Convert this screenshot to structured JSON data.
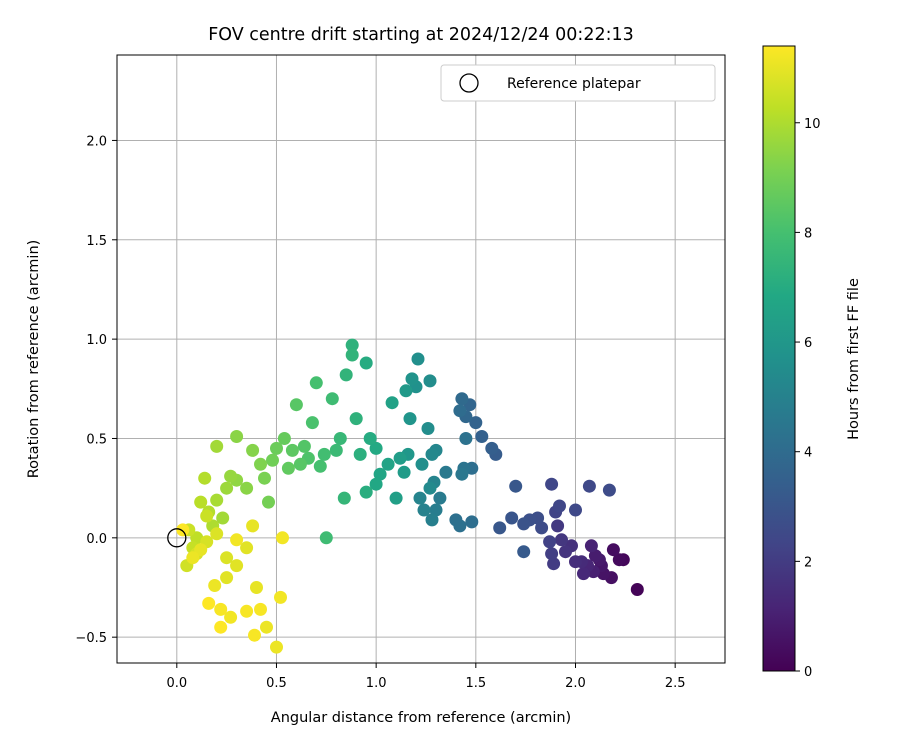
{
  "chart_data": {
    "type": "scatter",
    "title": "FOV centre drift starting at 2024/12/24 00:22:13",
    "xlabel": "Angular distance from reference (arcmin)",
    "ylabel": "Rotation from reference (arcmin)",
    "xlim": [
      -0.3,
      2.75
    ],
    "ylim": [
      -0.63,
      2.43
    ],
    "xticks": [
      0.0,
      0.5,
      1.0,
      1.5,
      2.0,
      2.5
    ],
    "xtick_labels": [
      "0.0",
      "0.5",
      "1.0",
      "1.5",
      "2.0",
      "2.5"
    ],
    "yticks": [
      -0.5,
      0.0,
      0.5,
      1.0,
      1.5,
      2.0
    ],
    "ytick_labels": [
      "−0.5",
      "0.0",
      "0.5",
      "1.0",
      "1.5",
      "2.0"
    ],
    "grid": true,
    "legend": {
      "position": "top-right",
      "entries": [
        "Reference platepar"
      ]
    },
    "colorbar": {
      "label": "Hours from first FF file",
      "colormap": "viridis",
      "range": [
        0,
        11.4
      ],
      "ticks": [
        0,
        2,
        4,
        6,
        8,
        10
      ],
      "tick_labels": [
        "0",
        "2",
        "4",
        "6",
        "8",
        "10"
      ]
    },
    "reference_point": {
      "x": 0.0,
      "y": 0.0
    },
    "point_fields": [
      "x",
      "y",
      "hours"
    ],
    "points": [
      [
        2.31,
        -0.26,
        0.1
      ],
      [
        2.24,
        -0.11,
        0.2
      ],
      [
        2.22,
        -0.11,
        0.3
      ],
      [
        2.19,
        -0.06,
        0.4
      ],
      [
        2.18,
        -0.2,
        0.5
      ],
      [
        2.14,
        -0.18,
        0.6
      ],
      [
        2.13,
        -0.14,
        0.7
      ],
      [
        2.12,
        -0.11,
        0.8
      ],
      [
        2.1,
        -0.09,
        0.9
      ],
      [
        2.09,
        -0.17,
        1.0
      ],
      [
        2.08,
        -0.04,
        1.1
      ],
      [
        2.06,
        -0.14,
        1.2
      ],
      [
        2.04,
        -0.18,
        1.3
      ],
      [
        2.03,
        -0.12,
        1.4
      ],
      [
        2.0,
        -0.12,
        1.5
      ],
      [
        1.98,
        -0.04,
        1.6
      ],
      [
        1.95,
        -0.07,
        1.7
      ],
      [
        1.93,
        -0.01,
        1.8
      ],
      [
        1.91,
        0.06,
        1.9
      ],
      [
        1.89,
        -0.13,
        2.0
      ],
      [
        1.88,
        -0.08,
        2.1
      ],
      [
        1.87,
        -0.02,
        2.2
      ],
      [
        1.9,
        0.13,
        2.3
      ],
      [
        1.92,
        0.16,
        2.4
      ],
      [
        1.88,
        0.27,
        2.4
      ],
      [
        2.0,
        0.14,
        2.5
      ],
      [
        2.07,
        0.26,
        2.5
      ],
      [
        2.17,
        0.24,
        2.6
      ],
      [
        1.83,
        0.05,
        2.6
      ],
      [
        1.81,
        0.1,
        2.7
      ],
      [
        1.77,
        0.09,
        2.8
      ],
      [
        1.74,
        0.07,
        2.9
      ],
      [
        1.68,
        0.1,
        3.0
      ],
      [
        1.62,
        0.05,
        3.1
      ],
      [
        1.7,
        0.26,
        3.1
      ],
      [
        1.74,
        -0.07,
        3.2
      ],
      [
        1.6,
        0.42,
        3.3
      ],
      [
        1.58,
        0.45,
        3.4
      ],
      [
        1.53,
        0.51,
        3.5
      ],
      [
        1.5,
        0.58,
        3.6
      ],
      [
        1.47,
        0.67,
        3.7
      ],
      [
        1.45,
        0.61,
        3.8
      ],
      [
        1.43,
        0.7,
        3.9
      ],
      [
        1.42,
        0.64,
        4.0
      ],
      [
        1.48,
        0.35,
        4.1
      ],
      [
        1.48,
        0.08,
        4.1
      ],
      [
        1.42,
        0.06,
        4.2
      ],
      [
        1.4,
        0.09,
        4.2
      ],
      [
        1.45,
        0.5,
        4.3
      ],
      [
        1.44,
        0.35,
        4.4
      ],
      [
        1.43,
        0.32,
        4.5
      ],
      [
        1.35,
        0.33,
        4.6
      ],
      [
        1.32,
        0.2,
        4.7
      ],
      [
        1.3,
        0.14,
        4.8
      ],
      [
        1.28,
        0.09,
        4.9
      ],
      [
        1.24,
        0.14,
        5.0
      ],
      [
        1.22,
        0.2,
        5.1
      ],
      [
        1.29,
        0.28,
        5.1
      ],
      [
        1.3,
        0.44,
        5.2
      ],
      [
        1.28,
        0.42,
        5.3
      ],
      [
        1.27,
        0.25,
        5.4
      ],
      [
        1.26,
        0.55,
        5.5
      ],
      [
        1.27,
        0.79,
        5.5
      ],
      [
        1.23,
        0.37,
        5.6
      ],
      [
        1.21,
        0.9,
        5.6
      ],
      [
        1.2,
        0.76,
        5.7
      ],
      [
        1.18,
        0.8,
        5.8
      ],
      [
        1.17,
        0.6,
        5.9
      ],
      [
        1.16,
        0.42,
        6.0
      ],
      [
        1.15,
        0.74,
        6.1
      ],
      [
        1.14,
        0.33,
        6.2
      ],
      [
        1.12,
        0.4,
        6.3
      ],
      [
        1.1,
        0.2,
        6.4
      ],
      [
        1.08,
        0.68,
        6.5
      ],
      [
        1.06,
        0.37,
        6.6
      ],
      [
        1.02,
        0.32,
        6.7
      ],
      [
        1.0,
        0.27,
        6.8
      ],
      [
        1.0,
        0.45,
        6.9
      ],
      [
        0.97,
        0.5,
        7.0
      ],
      [
        0.95,
        0.88,
        7.0
      ],
      [
        0.95,
        0.23,
        7.1
      ],
      [
        0.92,
        0.42,
        7.2
      ],
      [
        0.9,
        0.6,
        7.3
      ],
      [
        0.88,
        0.97,
        7.3
      ],
      [
        0.88,
        0.92,
        7.4
      ],
      [
        0.85,
        0.82,
        7.4
      ],
      [
        0.84,
        0.2,
        7.5
      ],
      [
        0.82,
        0.5,
        7.6
      ],
      [
        0.8,
        0.44,
        7.7
      ],
      [
        0.78,
        0.7,
        7.8
      ],
      [
        0.75,
        0.0,
        7.8
      ],
      [
        0.74,
        0.42,
        7.9
      ],
      [
        0.72,
        0.36,
        8.0
      ],
      [
        0.7,
        0.78,
        8.0
      ],
      [
        0.68,
        0.58,
        8.1
      ],
      [
        0.66,
        0.4,
        8.2
      ],
      [
        0.64,
        0.46,
        8.3
      ],
      [
        0.62,
        0.37,
        8.4
      ],
      [
        0.6,
        0.67,
        8.4
      ],
      [
        0.58,
        0.44,
        8.5
      ],
      [
        0.56,
        0.35,
        8.6
      ],
      [
        0.54,
        0.5,
        8.7
      ],
      [
        0.5,
        0.45,
        8.8
      ],
      [
        0.48,
        0.39,
        8.9
      ],
      [
        0.46,
        0.18,
        9.0
      ],
      [
        0.44,
        0.3,
        9.1
      ],
      [
        0.42,
        0.37,
        9.2
      ],
      [
        0.38,
        0.44,
        9.3
      ],
      [
        0.35,
        0.25,
        9.4
      ],
      [
        0.3,
        0.51,
        9.4
      ],
      [
        0.3,
        0.29,
        9.5
      ],
      [
        0.27,
        0.31,
        9.6
      ],
      [
        0.25,
        0.25,
        9.7
      ],
      [
        0.23,
        0.1,
        9.8
      ],
      [
        0.2,
        0.46,
        9.8
      ],
      [
        0.2,
        0.19,
        9.9
      ],
      [
        0.18,
        0.06,
        10.0
      ],
      [
        0.16,
        0.13,
        10.1
      ],
      [
        0.14,
        0.3,
        10.1
      ],
      [
        0.12,
        0.18,
        10.2
      ],
      [
        0.1,
        0.0,
        10.3
      ],
      [
        0.08,
        -0.05,
        10.4
      ],
      [
        0.06,
        0.04,
        10.5
      ],
      [
        0.05,
        -0.14,
        10.6
      ],
      [
        0.1,
        -0.08,
        10.7
      ],
      [
        0.15,
        -0.02,
        10.7
      ],
      [
        0.2,
        0.02,
        10.8
      ],
      [
        0.25,
        -0.1,
        10.8
      ],
      [
        0.3,
        -0.14,
        10.9
      ],
      [
        0.35,
        -0.05,
        10.9
      ],
      [
        0.38,
        0.06,
        11.0
      ],
      [
        0.4,
        -0.25,
        11.0
      ],
      [
        0.45,
        -0.45,
        11.1
      ],
      [
        0.5,
        -0.55,
        11.1
      ],
      [
        0.52,
        -0.3,
        11.2
      ],
      [
        0.53,
        0.0,
        11.2
      ],
      [
        0.42,
        -0.36,
        11.3
      ],
      [
        0.39,
        -0.49,
        11.3
      ],
      [
        0.35,
        -0.37,
        11.3
      ],
      [
        0.22,
        -0.45,
        11.4
      ],
      [
        0.16,
        -0.33,
        11.4
      ],
      [
        0.03,
        0.04,
        11.4
      ],
      [
        0.22,
        -0.36,
        11.3
      ],
      [
        0.27,
        -0.4,
        11.2
      ],
      [
        0.3,
        -0.01,
        11.2
      ],
      [
        0.19,
        -0.24,
        11.1
      ],
      [
        0.12,
        -0.06,
        11.0
      ],
      [
        0.25,
        -0.2,
        10.9
      ],
      [
        0.08,
        -0.1,
        11.1
      ],
      [
        0.15,
        0.11,
        10.5
      ]
    ]
  }
}
